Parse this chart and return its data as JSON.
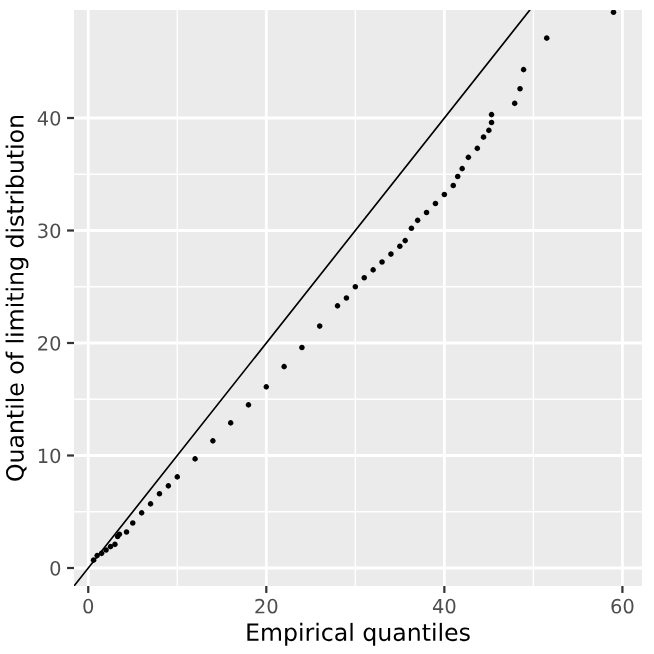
{
  "chart_data": {
    "type": "scatter",
    "xlabel": "Empirical quantiles",
    "ylabel": "Quantile of limiting distribution",
    "xlim": [
      -1.6,
      62.2
    ],
    "ylim": [
      -1.6,
      49.6
    ],
    "xticks": [
      0,
      20,
      40,
      60
    ],
    "yticks": [
      0,
      10,
      20,
      30,
      40
    ],
    "grid": true,
    "series": [
      {
        "color": "#000000",
        "marker": "circle",
        "x": [
          0.6,
          1,
          1.5,
          2,
          2.5,
          3,
          3.3,
          3.5,
          4.3,
          5,
          6,
          7,
          8,
          9,
          10,
          12,
          14,
          16,
          18,
          20,
          22,
          24,
          26,
          28,
          29,
          30,
          31,
          32,
          33,
          34,
          35,
          35.6,
          36.3,
          37,
          38,
          39,
          40,
          41,
          41.5,
          42,
          42.7,
          43.7,
          44.4,
          45,
          45.3,
          45.3,
          47.9,
          48.5,
          48.9,
          51.5,
          59.0
        ],
        "values": [
          0.7,
          1.1,
          1.3,
          1.6,
          1.9,
          2.1,
          2.8,
          3.0,
          3.2,
          4.0,
          4.9,
          5.7,
          6.6,
          7.3,
          8.1,
          9.7,
          11.3,
          12.9,
          14.5,
          16.1,
          17.9,
          19.6,
          21.5,
          23.3,
          24.0,
          25.0,
          25.8,
          26.5,
          27.2,
          27.9,
          28.6,
          29.1,
          30.2,
          30.9,
          31.6,
          32.4,
          33.2,
          34.0,
          34.8,
          35.5,
          36.5,
          37.3,
          38.3,
          38.9,
          39.6,
          40.3,
          41.3,
          42.6,
          44.3,
          47.1,
          49.4
        ]
      },
      {
        "type": "line",
        "marker": "none",
        "color": "#000000",
        "x": [
          -1.6,
          49.6
        ],
        "values": [
          -1.6,
          49.6
        ]
      }
    ]
  }
}
